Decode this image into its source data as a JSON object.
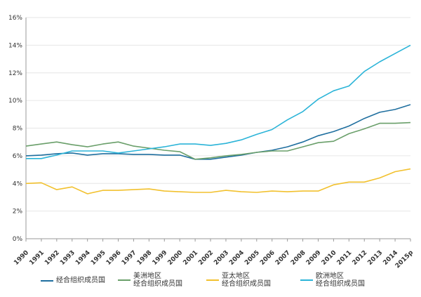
{
  "chart_data": {
    "type": "line",
    "title": "",
    "xlabel": "",
    "ylabel": "",
    "ylim": [
      0,
      16
    ],
    "yticks": [
      "0%",
      "2%",
      "4%",
      "6%",
      "8%",
      "10%",
      "12%",
      "14%",
      "16%"
    ],
    "grid": "horizontal",
    "legend_position": "bottom",
    "categories": [
      "1990",
      "1991",
      "1992",
      "1993",
      "1994",
      "1995",
      "1996",
      "1997",
      "1998",
      "1999",
      "2000",
      "2001",
      "2002",
      "2003",
      "2004",
      "2005",
      "2006",
      "2007",
      "2008",
      "2009",
      "2010",
      "2011",
      "2012",
      "2013",
      "2014",
      "2015p"
    ],
    "series": [
      {
        "name": "经合组织成员国",
        "color": "#1f6f9f",
        "values": [
          6.0,
          6.05,
          6.15,
          6.2,
          6.05,
          6.15,
          6.15,
          6.1,
          6.1,
          6.05,
          6.05,
          5.75,
          5.75,
          5.9,
          6.05,
          6.25,
          6.4,
          6.65,
          7.0,
          7.45,
          7.75,
          8.15,
          8.7,
          9.15,
          9.35,
          9.7
        ]
      },
      {
        "name": "美洲地区\n经合组织成员国",
        "color": "#6a9f6a",
        "values": [
          6.7,
          6.85,
          7.0,
          6.8,
          6.65,
          6.85,
          7.0,
          6.7,
          6.55,
          6.4,
          6.3,
          5.75,
          5.85,
          6.0,
          6.1,
          6.25,
          6.35,
          6.35,
          6.65,
          6.95,
          7.05,
          7.6,
          7.95,
          8.35,
          8.35,
          8.4
        ]
      },
      {
        "name": "亚太地区\n经合组织成员国",
        "color": "#f2c12e",
        "values": [
          4.0,
          4.05,
          3.55,
          3.75,
          3.25,
          3.5,
          3.5,
          3.55,
          3.6,
          3.45,
          3.4,
          3.35,
          3.35,
          3.5,
          3.4,
          3.35,
          3.45,
          3.4,
          3.45,
          3.45,
          3.9,
          4.1,
          4.1,
          4.4,
          4.85,
          5.05
        ]
      },
      {
        "name": "欧洲地区\n经合组织成员国",
        "color": "#2bb4d8",
        "values": [
          5.8,
          5.8,
          6.05,
          6.35,
          6.35,
          6.35,
          6.2,
          6.35,
          6.5,
          6.65,
          6.85,
          6.85,
          6.75,
          6.9,
          7.15,
          7.55,
          7.9,
          8.6,
          9.2,
          10.1,
          10.7,
          11.05,
          12.1,
          12.8,
          13.4,
          14.0
        ]
      }
    ]
  }
}
